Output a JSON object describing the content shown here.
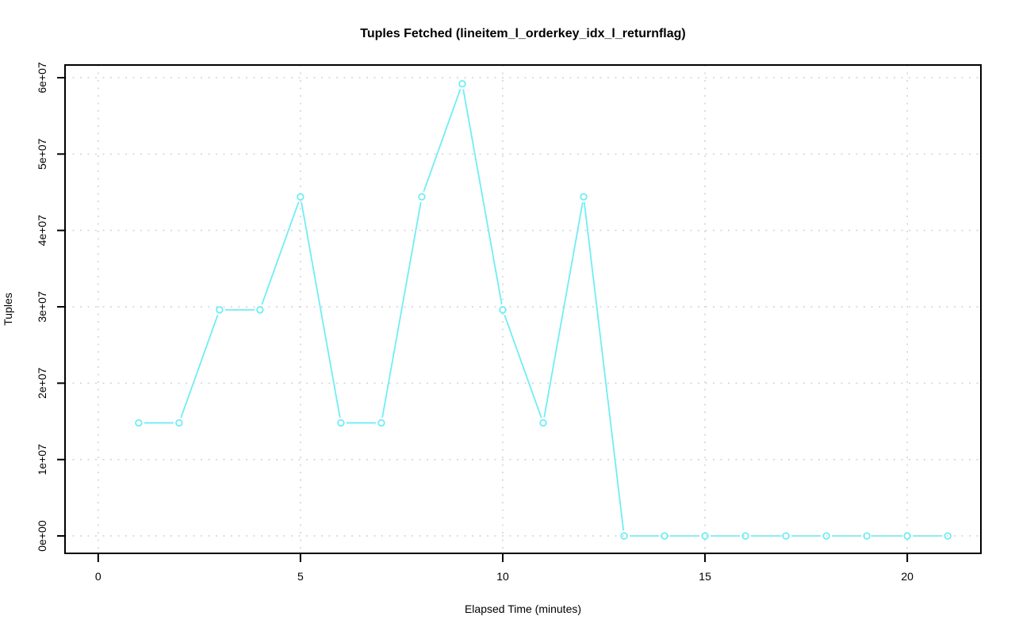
{
  "chart_data": {
    "type": "line",
    "title": "Tuples Fetched (lineitem_l_orderkey_idx_l_returnflag)",
    "xlabel": "Elapsed Time (minutes)",
    "ylabel": "Tuples",
    "x": [
      1,
      2,
      3,
      4,
      5,
      6,
      7,
      8,
      9,
      10,
      11,
      12,
      13,
      14,
      15,
      16,
      17,
      18,
      19,
      20,
      21
    ],
    "y": [
      14800000,
      14800000,
      29600000,
      29600000,
      44400000,
      14800000,
      14800000,
      44400000,
      59200000,
      29600000,
      14800000,
      44400000,
      0,
      0,
      0,
      0,
      0,
      0,
      0,
      0,
      0
    ],
    "x_ticks": [
      0,
      5,
      10,
      15,
      20
    ],
    "x_tick_labels": [
      "0",
      "5",
      "10",
      "15",
      "20"
    ],
    "y_ticks": [
      0,
      10000000,
      20000000,
      30000000,
      40000000,
      50000000,
      60000000
    ],
    "y_tick_labels": [
      "0e+00",
      "1e+07",
      "2e+07",
      "3e+07",
      "4e+07",
      "5e+07",
      "6e+07"
    ],
    "xlim": [
      -0.82,
      21.82
    ],
    "ylim": [
      -2280000,
      61660000
    ],
    "grid": true,
    "grid_style": "dotted",
    "legend_position": "none",
    "line_style": "points-and-segments",
    "marker": "open-circle",
    "colors": {
      "line": "#6FEEF4",
      "grid": "#D2D2D2",
      "axis": "#000000",
      "text": "#000000",
      "background": "#FFFFFF"
    }
  }
}
